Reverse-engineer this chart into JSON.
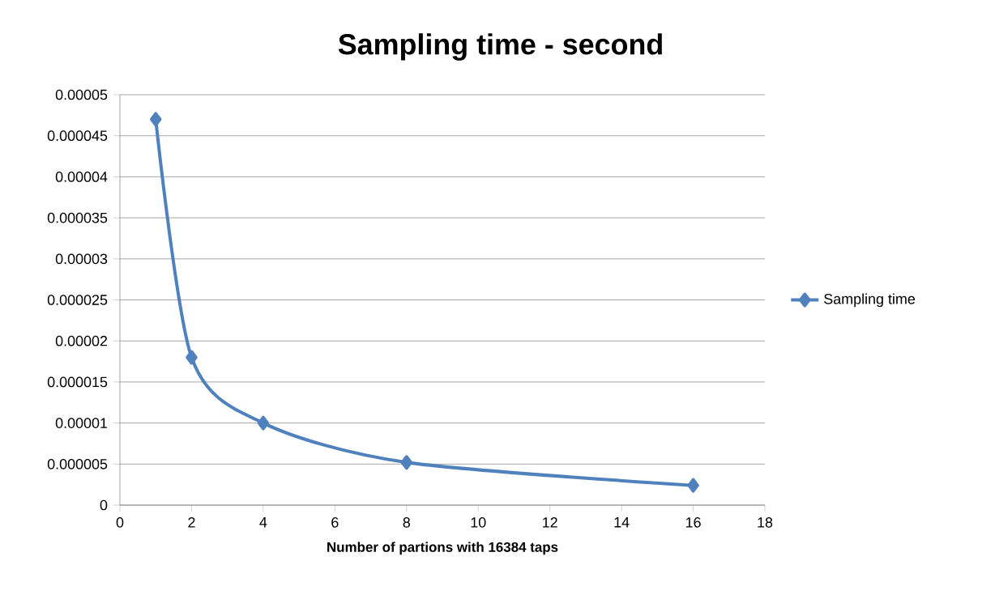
{
  "chart_data": {
    "type": "line",
    "title": "Sampling time - second",
    "xlabel": "Number of partions with 16384 taps",
    "x": [
      1,
      2,
      4,
      8,
      16
    ],
    "series": [
      {
        "name": "Sampling time",
        "color": "#4f81bd",
        "values": [
          4.7e-05,
          1.8e-05,
          1e-05,
          5.2e-06,
          2.4e-06
        ]
      }
    ],
    "xlim": [
      0,
      18
    ],
    "xticks": [
      0,
      2,
      4,
      6,
      8,
      10,
      12,
      14,
      16,
      18
    ],
    "ylim": [
      0,
      5e-05
    ],
    "yticks": [
      {
        "value": 0,
        "label": "0"
      },
      {
        "value": 5e-06,
        "label": "0.000005"
      },
      {
        "value": 1e-05,
        "label": "0.00001"
      },
      {
        "value": 1.5e-05,
        "label": "0.000015"
      },
      {
        "value": 2e-05,
        "label": "0.00002"
      },
      {
        "value": 2.5e-05,
        "label": "0.000025"
      },
      {
        "value": 3e-05,
        "label": "0.00003"
      },
      {
        "value": 3.5e-05,
        "label": "0.000035"
      },
      {
        "value": 4e-05,
        "label": "0.00004"
      },
      {
        "value": 4.5e-05,
        "label": "0.000045"
      },
      {
        "value": 5e-05,
        "label": "0.00005"
      }
    ],
    "grid": "y",
    "legend": "right",
    "marker": "diamond",
    "line_style": "solid"
  }
}
